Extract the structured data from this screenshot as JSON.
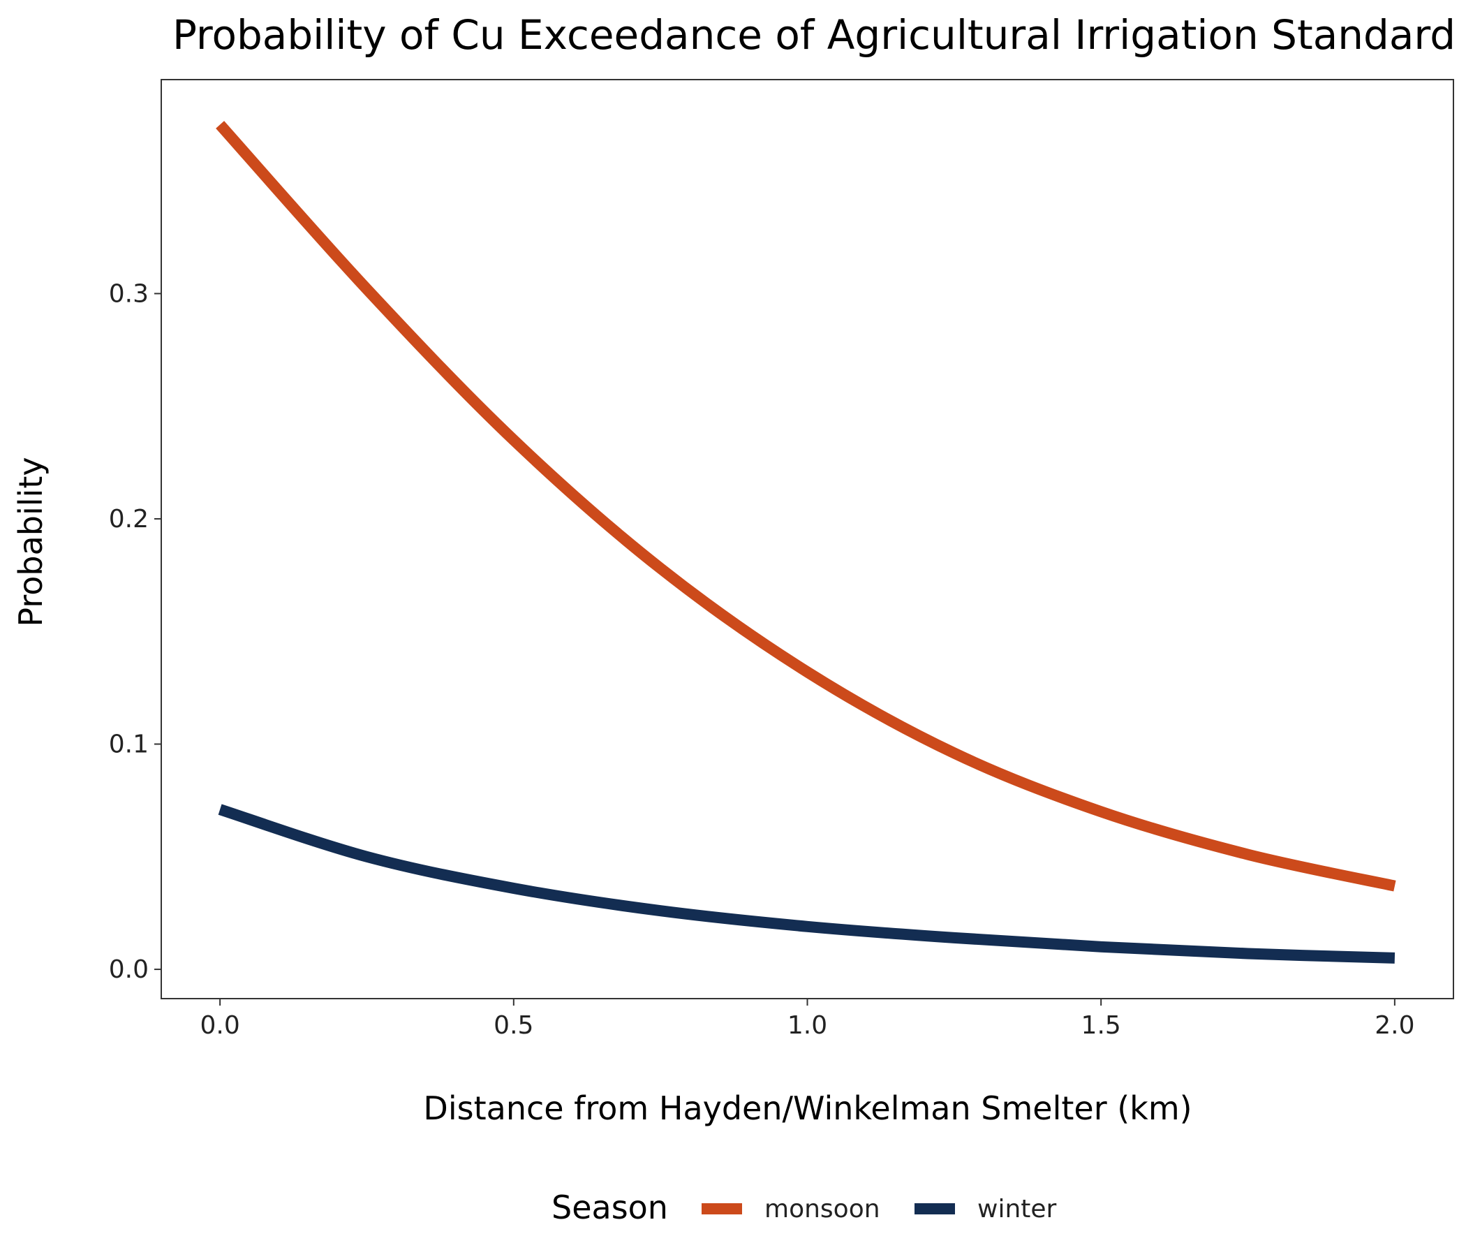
{
  "chart_data": {
    "type": "line",
    "title": "Probability of Cu Exceedance of Agricultural Irrigation Standard",
    "xlabel": "Distance from Hayden/Winkelman Smelter (km)",
    "ylabel": "Probability",
    "xlim": [
      -0.1,
      2.1
    ],
    "ylim": [
      -0.013,
      0.395
    ],
    "x_ticks": [
      0.0,
      0.5,
      1.0,
      1.5,
      2.0
    ],
    "x_tick_labels": [
      "0.0",
      "0.5",
      "1.0",
      "1.5",
      "2.0"
    ],
    "y_ticks": [
      0.0,
      0.1,
      0.2,
      0.3
    ],
    "y_tick_labels": [
      "0.0",
      "0.1",
      "0.2",
      "0.3"
    ],
    "grid": false,
    "legend": {
      "title": "Season",
      "position": "bottom"
    },
    "series": [
      {
        "name": "monsoon",
        "color": "#CC4A1B",
        "x": [
          0.0,
          0.25,
          0.5,
          0.75,
          1.0,
          1.25,
          1.5,
          1.75,
          2.0
        ],
        "y": [
          0.375,
          0.302,
          0.235,
          0.178,
          0.132,
          0.096,
          0.07,
          0.051,
          0.037
        ]
      },
      {
        "name": "winter",
        "color": "#132D52",
        "x": [
          0.0,
          0.25,
          0.5,
          0.75,
          1.0,
          1.25,
          1.5,
          1.75,
          2.0
        ],
        "y": [
          0.071,
          0.05,
          0.036,
          0.026,
          0.019,
          0.014,
          0.01,
          0.007,
          0.005
        ]
      }
    ]
  }
}
